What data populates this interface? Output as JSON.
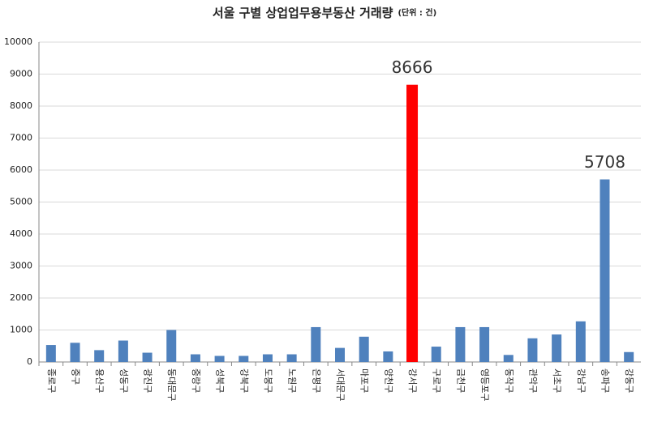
{
  "chart_data": {
    "type": "bar",
    "title": "서울 구별 상업업무용부동산 거래량",
    "unit": "(단위 : 건)",
    "categories": [
      "종로구",
      "중구",
      "용산구",
      "성동구",
      "광진구",
      "동대문구",
      "중랑구",
      "성북구",
      "강북구",
      "도봉구",
      "노원구",
      "은평구",
      "서대문구",
      "마포구",
      "양천구",
      "강서구",
      "구로구",
      "금천구",
      "영등포구",
      "동작구",
      "관악구",
      "서초구",
      "강남구",
      "송파구",
      "강동구"
    ],
    "values": [
      530,
      600,
      370,
      670,
      290,
      1000,
      240,
      190,
      190,
      240,
      240,
      1090,
      440,
      790,
      330,
      8666,
      480,
      1090,
      1090,
      220,
      740,
      860,
      1270,
      5708,
      310
    ],
    "colors": [
      "#4f81bd",
      "#4f81bd",
      "#4f81bd",
      "#4f81bd",
      "#4f81bd",
      "#4f81bd",
      "#4f81bd",
      "#4f81bd",
      "#4f81bd",
      "#4f81bd",
      "#4f81bd",
      "#4f81bd",
      "#4f81bd",
      "#4f81bd",
      "#4f81bd",
      "#ff0000",
      "#4f81bd",
      "#4f81bd",
      "#4f81bd",
      "#4f81bd",
      "#4f81bd",
      "#4f81bd",
      "#4f81bd",
      "#4f81bd",
      "#4f81bd"
    ],
    "value_labels": [
      null,
      null,
      null,
      null,
      null,
      null,
      null,
      null,
      null,
      null,
      null,
      null,
      null,
      null,
      null,
      "8666",
      null,
      null,
      null,
      null,
      null,
      null,
      null,
      "5708",
      null
    ],
    "ylim": [
      0,
      10000
    ],
    "yticks": [
      0,
      1000,
      2000,
      3000,
      4000,
      5000,
      6000,
      7000,
      8000,
      9000,
      10000
    ],
    "grid": true
  }
}
